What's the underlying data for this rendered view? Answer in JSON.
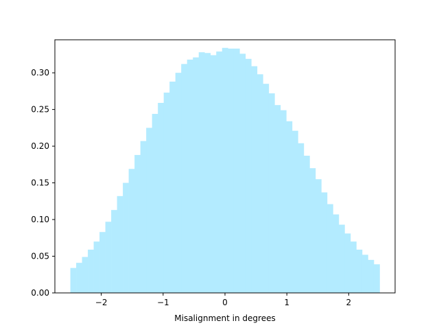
{
  "chart_data": {
    "type": "bar",
    "histogram": true,
    "xlabel": "Misalignment in degrees",
    "ylabel": "",
    "title": "",
    "bin_range": [
      -2.5,
      2.5
    ],
    "xlim": [
      -2.75,
      2.75
    ],
    "ylim": [
      0.0,
      0.345
    ],
    "xticks": [
      -2,
      -1,
      0,
      1,
      2
    ],
    "xtick_labels": [
      "−2",
      "−1",
      "0",
      "1",
      "2"
    ],
    "yticks": [
      0.0,
      0.05,
      0.1,
      0.15,
      0.2,
      0.25,
      0.3
    ],
    "ytick_labels": [
      "0.00",
      "0.05",
      "0.10",
      "0.15",
      "0.20",
      "0.25",
      "0.30"
    ],
    "grid": false,
    "legend": "none",
    "bar_color": "#b3ebff",
    "values": [
      0.034,
      0.041,
      0.049,
      0.059,
      0.07,
      0.083,
      0.097,
      0.113,
      0.132,
      0.15,
      0.169,
      0.188,
      0.207,
      0.225,
      0.244,
      0.259,
      0.273,
      0.288,
      0.3,
      0.312,
      0.318,
      0.321,
      0.328,
      0.327,
      0.324,
      0.329,
      0.334,
      0.333,
      0.333,
      0.326,
      0.319,
      0.309,
      0.298,
      0.285,
      0.272,
      0.256,
      0.249,
      0.234,
      0.221,
      0.204,
      0.187,
      0.17,
      0.155,
      0.137,
      0.121,
      0.107,
      0.093,
      0.081,
      0.07,
      0.059,
      0.052,
      0.045,
      0.039
    ]
  }
}
